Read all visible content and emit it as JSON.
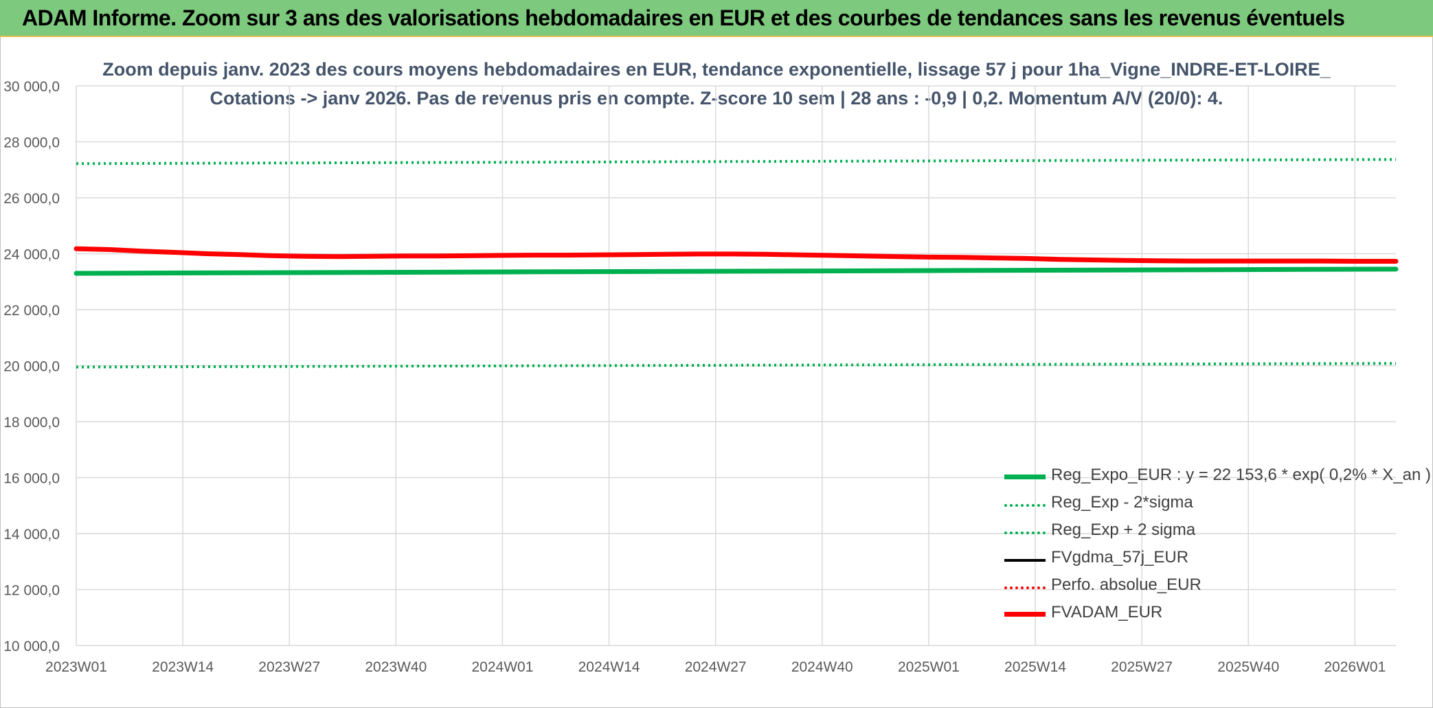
{
  "banner": {
    "text": "ADAM Informe. Zoom sur 3 ans des valorisations hebdomadaires en EUR et des courbes de tendances sans les revenus éventuels"
  },
  "chart_data": {
    "type": "line",
    "title": "Zoom depuis janv. 2023 des cours moyens hebdomadaires en EUR, tendance exponentielle, lissage 57 j pour 1ha_Vigne_INDRE-ET-LOIRE_",
    "subtitle": "Cotations -> janv 2026. Pas de revenus pris en compte. Z-score 10 sem | 28 ans : -0,9 | 0,2. Momentum A/V (20/0): 4.",
    "xlabel": "",
    "ylabel": "",
    "ylim": [
      10000,
      30000
    ],
    "yticks": [
      10000,
      12000,
      14000,
      16000,
      18000,
      20000,
      22000,
      24000,
      26000,
      28000,
      30000
    ],
    "ytick_labels": [
      "10 000,0",
      "12 000,0",
      "14 000,0",
      "16 000,0",
      "18 000,0",
      "20 000,0",
      "22 000,0",
      "24 000,0",
      "26 000,0",
      "28 000,0",
      "30 000,0"
    ],
    "x_range_weeks": [
      0,
      161
    ],
    "xticks": [
      0,
      13,
      26,
      39,
      52,
      65,
      78,
      91,
      104,
      117,
      130,
      143,
      156
    ],
    "xtick_labels": [
      "2023W01",
      "2023W14",
      "2023W27",
      "2023W40",
      "2024W01",
      "2024W14",
      "2024W27",
      "2024W40",
      "2025W01",
      "2025W14",
      "2025W27",
      "2025W40",
      "2026W01"
    ],
    "grid": true,
    "legend_position": "bottom-right",
    "series": [
      {
        "name": "Reg_Expo_EUR : y = 22 153,6 * exp( 0,2% *  X_an )",
        "color": "#00b050",
        "style": "solid-thick",
        "x": [
          0,
          161
        ],
        "y": [
          23300,
          23450
        ]
      },
      {
        "name": "Reg_Exp - 2*sigma",
        "color": "#00b050",
        "style": "dotted",
        "x": [
          0,
          161
        ],
        "y": [
          19950,
          20080
        ]
      },
      {
        "name": "Reg_Exp + 2 sigma",
        "color": "#00b050",
        "style": "dotted",
        "x": [
          0,
          161
        ],
        "y": [
          27220,
          27370
        ]
      },
      {
        "name": "FVgdma_57j_EUR",
        "color": "#000000",
        "style": "solid",
        "x": [
          0,
          4,
          8,
          12,
          16,
          20,
          24,
          28,
          32,
          36,
          40,
          44,
          48,
          52,
          56,
          60,
          64,
          68,
          72,
          76,
          80,
          84,
          88,
          92,
          96,
          100,
          104,
          108,
          112,
          116,
          120,
          124,
          128,
          132,
          136,
          140,
          144,
          148,
          152,
          156,
          161
        ],
        "y": [
          24180,
          24150,
          24090,
          24050,
          24010,
          23980,
          23940,
          23920,
          23910,
          23910,
          23920,
          23920,
          23930,
          23940,
          23950,
          23950,
          23960,
          23970,
          23980,
          23990,
          23990,
          23980,
          23960,
          23940,
          23920,
          23900,
          23880,
          23870,
          23850,
          23830,
          23800,
          23780,
          23760,
          23750,
          23740,
          23740,
          23740,
          23740,
          23740,
          23730,
          23730
        ]
      },
      {
        "name": "Perfo. absolue_EUR",
        "color": "#ff0000",
        "style": "dotted",
        "x": [
          0,
          4,
          8,
          12,
          16,
          20,
          24,
          28,
          32,
          36,
          40,
          44,
          48,
          52,
          56,
          60,
          64,
          68,
          72,
          76,
          80,
          84,
          88,
          92,
          96,
          100,
          104,
          108,
          112,
          116,
          120,
          124,
          128,
          132,
          136,
          140,
          144,
          148,
          152,
          156,
          161
        ],
        "y": [
          24180,
          24150,
          24090,
          24050,
          24010,
          23980,
          23940,
          23920,
          23910,
          23910,
          23920,
          23920,
          23930,
          23940,
          23950,
          23950,
          23960,
          23970,
          23980,
          23990,
          23990,
          23980,
          23960,
          23940,
          23920,
          23900,
          23880,
          23870,
          23850,
          23830,
          23800,
          23780,
          23760,
          23750,
          23740,
          23740,
          23740,
          23740,
          23740,
          23730,
          23730
        ]
      },
      {
        "name": "FVADAM_EUR",
        "color": "#ff0000",
        "style": "solid-thick",
        "x": [
          0,
          4,
          8,
          12,
          16,
          20,
          24,
          28,
          32,
          36,
          40,
          44,
          48,
          52,
          56,
          60,
          64,
          68,
          72,
          76,
          80,
          84,
          88,
          92,
          96,
          100,
          104,
          108,
          112,
          116,
          120,
          124,
          128,
          132,
          136,
          140,
          144,
          148,
          152,
          156,
          161
        ],
        "y": [
          24180,
          24150,
          24090,
          24050,
          24000,
          23970,
          23930,
          23910,
          23900,
          23910,
          23920,
          23920,
          23930,
          23940,
          23950,
          23950,
          23960,
          23970,
          23980,
          23990,
          23990,
          23980,
          23960,
          23940,
          23920,
          23900,
          23880,
          23870,
          23850,
          23830,
          23800,
          23780,
          23760,
          23750,
          23740,
          23740,
          23740,
          23740,
          23740,
          23730,
          23730
        ]
      }
    ]
  }
}
